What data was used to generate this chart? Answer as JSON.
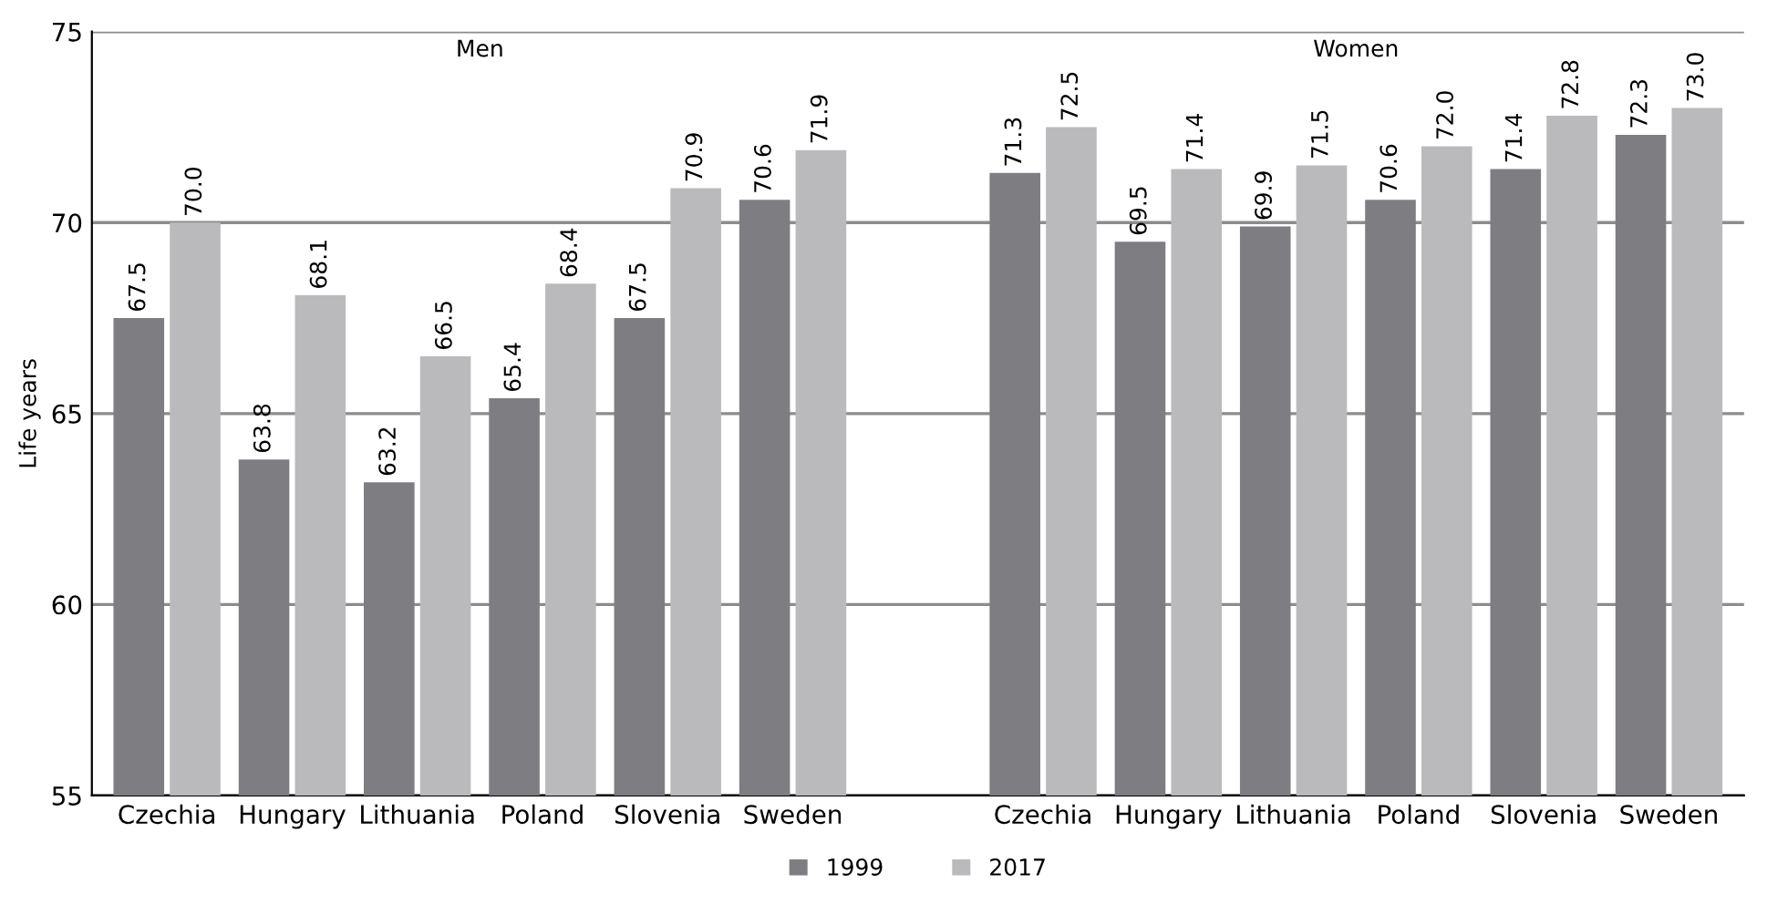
{
  "chart_data": {
    "type": "bar",
    "ylabel": "Life years",
    "categories": [
      "Czechia",
      "Hungary",
      "Lithuania",
      "Poland",
      "Slovenia",
      "Sweden",
      null,
      "Czechia",
      "Hungary",
      "Lithuania",
      "Poland",
      "Slovenia",
      "Sweden"
    ],
    "series": [
      {
        "name": "1999",
        "color": "#7e7e82",
        "values": [
          67.5,
          63.8,
          63.2,
          65.4,
          67.5,
          70.6,
          null,
          71.3,
          69.5,
          69.9,
          70.6,
          71.4,
          72.3
        ],
        "value_labels": [
          "67.5",
          "63.8",
          "63.2",
          "65.4",
          "67.5",
          "70.6",
          null,
          "71.3",
          "69.5",
          "69.9",
          "70.6",
          "71.4",
          "72.3"
        ]
      },
      {
        "name": "2017",
        "color": "#bababd",
        "values": [
          70.0,
          68.1,
          66.5,
          68.4,
          70.9,
          71.9,
          null,
          72.5,
          71.4,
          71.5,
          72.0,
          72.8,
          73.0
        ],
        "value_labels": [
          "70.0",
          "68.1",
          "66.5",
          "68.4",
          "70.9",
          "71.9",
          null,
          "72.5",
          "71.4",
          "71.5",
          "72.0",
          "72.8",
          "73.0"
        ]
      }
    ],
    "annotations": [
      "Men",
      "Women"
    ],
    "ylim": [
      55,
      75
    ],
    "yticks": [
      55,
      60,
      65,
      70,
      75
    ],
    "grid": "y",
    "legend": "bottom"
  }
}
